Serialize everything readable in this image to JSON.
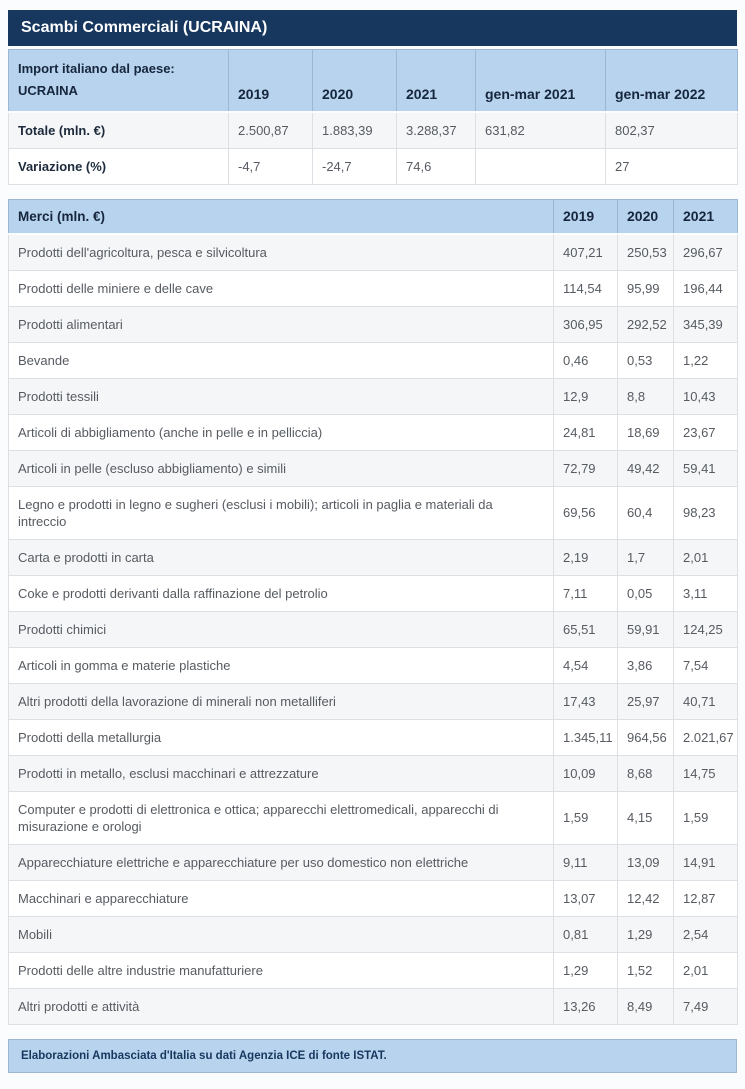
{
  "title": "Scambi Commerciali (UCRAINA)",
  "colors": {
    "title_bar_navy": "#17375e",
    "header_blue": "#b8d3ee",
    "row_stripe": "#f5f6f8"
  },
  "import_table": {
    "header": {
      "label_line1": "Import italiano dal paese:",
      "label_line2": "UCRAINA",
      "columns": [
        "2019",
        "2020",
        "2021",
        "gen-mar 2021",
        "gen-mar 2022"
      ]
    },
    "rows": [
      {
        "label": "Totale (mln. €)",
        "values": [
          "2.500,87",
          "1.883,39",
          "3.288,37",
          "631,82",
          "802,37"
        ]
      },
      {
        "label": "Variazione (%)",
        "values": [
          "-4,7",
          "-24,7",
          "74,6",
          "",
          "27"
        ]
      }
    ]
  },
  "merci_table": {
    "header": {
      "label": "Merci (mln. €)",
      "columns": [
        "2019",
        "2020",
        "2021"
      ]
    },
    "rows": [
      {
        "label": "Prodotti dell'agricoltura, pesca e silvicoltura",
        "values": [
          "407,21",
          "250,53",
          "296,67"
        ]
      },
      {
        "label": "Prodotti delle miniere e delle cave",
        "values": [
          "114,54",
          "95,99",
          "196,44"
        ]
      },
      {
        "label": "Prodotti alimentari",
        "values": [
          "306,95",
          "292,52",
          "345,39"
        ]
      },
      {
        "label": "Bevande",
        "values": [
          "0,46",
          "0,53",
          "1,22"
        ]
      },
      {
        "label": "Prodotti tessili",
        "values": [
          "12,9",
          "8,8",
          "10,43"
        ]
      },
      {
        "label": "Articoli di abbigliamento (anche in pelle e in pelliccia)",
        "values": [
          "24,81",
          "18,69",
          "23,67"
        ]
      },
      {
        "label": "Articoli in pelle (escluso abbigliamento) e simili",
        "values": [
          "72,79",
          "49,42",
          "59,41"
        ]
      },
      {
        "label": "Legno e prodotti in legno e sugheri (esclusi i mobili); articoli in paglia e materiali da intreccio",
        "values": [
          "69,56",
          "60,4",
          "98,23"
        ]
      },
      {
        "label": "Carta e prodotti in carta",
        "values": [
          "2,19",
          "1,7",
          "2,01"
        ]
      },
      {
        "label": "Coke e prodotti derivanti dalla raffinazione del petrolio",
        "values": [
          "7,11",
          "0,05",
          "3,11"
        ]
      },
      {
        "label": "Prodotti chimici",
        "values": [
          "65,51",
          "59,91",
          "124,25"
        ]
      },
      {
        "label": "Articoli in gomma e materie plastiche",
        "values": [
          "4,54",
          "3,86",
          "7,54"
        ]
      },
      {
        "label": "Altri prodotti della lavorazione di minerali non metalliferi",
        "values": [
          "17,43",
          "25,97",
          "40,71"
        ]
      },
      {
        "label": "Prodotti della metallurgia",
        "values": [
          "1.345,11",
          "964,56",
          "2.021,67"
        ]
      },
      {
        "label": "Prodotti in metallo, esclusi macchinari e attrezzature",
        "values": [
          "10,09",
          "8,68",
          "14,75"
        ]
      },
      {
        "label": "Computer e prodotti di elettronica e ottica; apparecchi elettromedicali, apparecchi di misurazione e orologi",
        "values": [
          "1,59",
          "4,15",
          "1,59"
        ]
      },
      {
        "label": "Apparecchiature elettriche e apparecchiature per uso domestico non elettriche",
        "values": [
          "9,11",
          "13,09",
          "14,91"
        ]
      },
      {
        "label": "Macchinari e apparecchiature",
        "values": [
          "13,07",
          "12,42",
          "12,87"
        ]
      },
      {
        "label": "Mobili",
        "values": [
          "0,81",
          "1,29",
          "2,54"
        ]
      },
      {
        "label": "Prodotti delle altre industrie manufatturiere",
        "values": [
          "1,29",
          "1,52",
          "2,01"
        ]
      },
      {
        "label": "Altri prodotti e attività",
        "values": [
          "13,26",
          "8,49",
          "7,49"
        ]
      }
    ]
  },
  "footer": {
    "text": "Elaborazioni Ambasciata d'Italia su dati Agenzia ICE di fonte ISTAT."
  }
}
